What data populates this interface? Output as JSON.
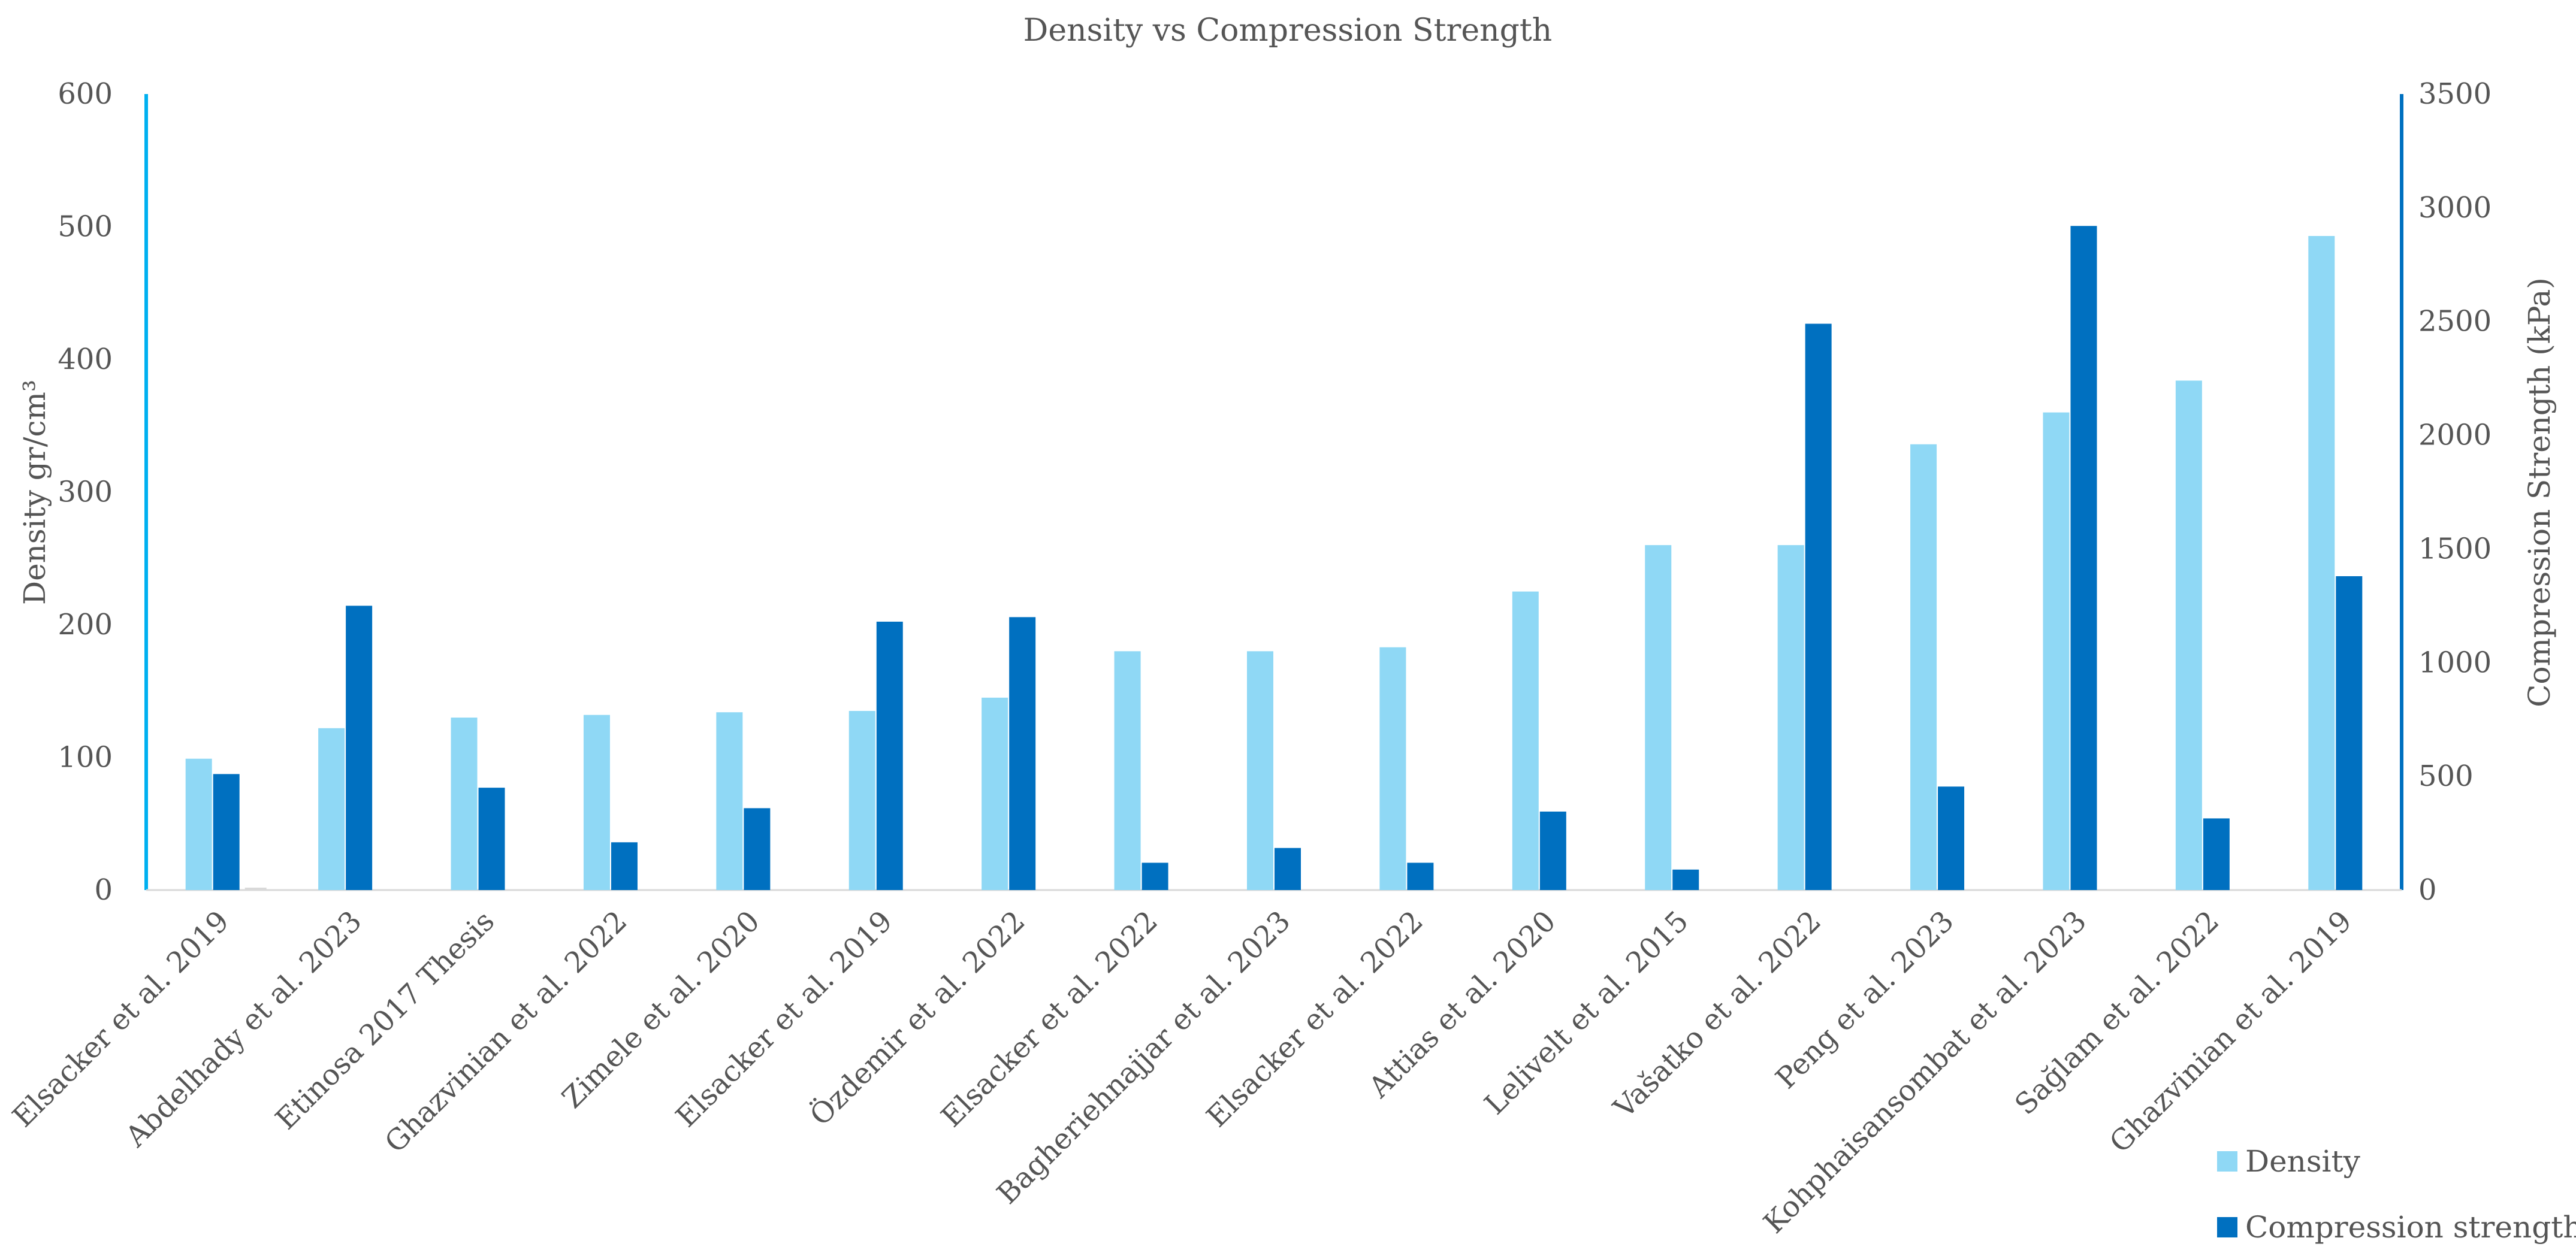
{
  "chart_data": {
    "type": "bar",
    "title": "Density vs Compression Strength",
    "categories": [
      "Elsacker et al. 2019",
      "Abdelhady et al. 2023",
      "Etinosa 2017 Thesis",
      "Ghazvinian et al. 2022",
      "Zimele et al.  2020",
      "Elsacker et al. 2019",
      "Özdemir et al.  2022",
      "Elsacker et al. 2022",
      "Bagheriehnajjar et al. 2023",
      "Elsacker et al. 2022",
      "Attias et al. 2020",
      "Lelivelt et al. 2015",
      "Vašatko et al. 2022",
      "Peng et al. 2023",
      "Kohphaisansombat et al. 2023",
      "Sağlam et al. 2022",
      "Ghazvinian et al. 2019"
    ],
    "series": [
      {
        "name": "Density",
        "axis": "left",
        "color": "#8fd8f5",
        "values": [
          99,
          122,
          130,
          132,
          134,
          135,
          145,
          180,
          180,
          183,
          225,
          260,
          260,
          336,
          360,
          384,
          493
        ]
      },
      {
        "name": "Compression strength",
        "axis": "right",
        "color": "#0070c0",
        "values": [
          510,
          1250,
          450,
          210,
          360,
          1180,
          1200,
          120,
          185,
          120,
          345,
          90,
          2490,
          455,
          2920,
          315,
          1380
        ]
      }
    ],
    "ylabel": "Density gr/cm³",
    "y2label": "Compression Strength (kPa)",
    "ylim": [
      0,
      600
    ],
    "y2lim": [
      0,
      3500
    ],
    "yticks": [
      "0",
      "100",
      "200",
      "300",
      "400",
      "500",
      "600"
    ],
    "y2ticks": [
      "0",
      "500",
      "1000",
      "1500",
      "2000",
      "2500",
      "3000",
      "3500"
    ],
    "legend_position": "bottom-right",
    "colors": {
      "left_axis": "#00b0f0",
      "right_axis": "#0070c0",
      "baseline": "#d9d9d9"
    }
  }
}
